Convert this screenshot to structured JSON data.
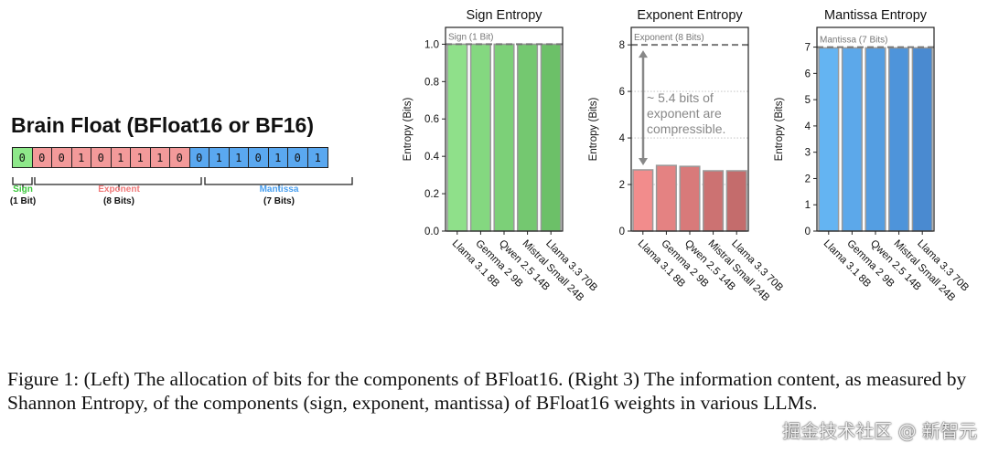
{
  "left_panel": {
    "title": "Brain Float (BFloat16 or BF16)",
    "bits": [
      "0",
      "0",
      "0",
      "1",
      "0",
      "1",
      "1",
      "1",
      "0",
      "0",
      "1",
      "1",
      "0",
      "1",
      "0",
      "1"
    ],
    "sign": {
      "name": "Sign",
      "size": "(1 Bit)",
      "color": "#3cc83c",
      "fill": "#8ee88a"
    },
    "exponent": {
      "name": "Exponent",
      "size": "(8 Bits)",
      "color": "#f07878",
      "fill": "#f39a9a"
    },
    "mantissa": {
      "name": "Mantissa",
      "size": "(7 Bits)",
      "color": "#4aa0f0",
      "fill": "#5aa8f0"
    }
  },
  "chart_data": [
    {
      "type": "bar",
      "title": "Sign Entropy",
      "ylabel": "Entropy (Bits)",
      "ylim": [
        0,
        1.09
      ],
      "yticks": [
        "0.0",
        "0.2",
        "0.4",
        "0.6",
        "0.8",
        "1.0"
      ],
      "ytick_values": [
        0,
        0.2,
        0.4,
        0.6,
        0.8,
        1.0
      ],
      "categories": [
        "Llama 3.1 8B",
        "Gemma 2 9B",
        "Qwen 2.5 14B",
        "Mistral Small 24B",
        "Llama 3.3 70B"
      ],
      "values": [
        1.0,
        1.0,
        1.0,
        1.0,
        1.0
      ],
      "ref_line": 1.0,
      "ref_label": "Sign (1 Bit)",
      "colors": [
        "#8fe08a",
        "#84d880",
        "#7cd078",
        "#74c870",
        "#6cc068"
      ]
    },
    {
      "type": "bar",
      "title": "Exponent Entropy",
      "ylabel": "Entropy (Bits)",
      "ylim": [
        0,
        8.75
      ],
      "yticks": [
        "0",
        "2",
        "4",
        "6",
        "8"
      ],
      "ytick_values": [
        0,
        2,
        4,
        6,
        8
      ],
      "categories": [
        "Llama 3.1 8B",
        "Gemma 2 9B",
        "Qwen 2.5 14B",
        "Mistral Small 24B",
        "Llama 3.3 70B"
      ],
      "values": [
        2.63,
        2.82,
        2.78,
        2.59,
        2.59
      ],
      "ref_line": 8,
      "ref_label": "Exponent (8 Bits)",
      "annotation": [
        "~ 5.4 bits of",
        "exponent are",
        "compressible."
      ],
      "colors": [
        "#f28c8c",
        "#e48282",
        "#d87a7a",
        "#cc7272",
        "#c46c6c"
      ]
    },
    {
      "type": "bar",
      "title": "Mantissa Entropy",
      "ylabel": "Entropy (Bits)",
      "ylim": [
        0,
        7.75
      ],
      "yticks": [
        "0",
        "1",
        "2",
        "3",
        "4",
        "5",
        "6",
        "7"
      ],
      "ytick_values": [
        0,
        1,
        2,
        3,
        4,
        5,
        6,
        7
      ],
      "categories": [
        "Llama 3.1 8B",
        "Gemma 2 9B",
        "Qwen 2.5 14B",
        "Mistral Small 24B",
        "Llama 3.3 70B"
      ],
      "values": [
        6.97,
        6.97,
        6.97,
        6.97,
        6.97
      ],
      "ref_line": 7,
      "ref_label": "Mantissa (7 Bits)",
      "colors": [
        "#64b4f2",
        "#5ca8ea",
        "#549ee2",
        "#4e94da",
        "#4a8ad0"
      ]
    }
  ],
  "caption": "Figure 1: (Left) The allocation of bits for the components of BFloat16. (Right 3) The information content, as measured by Shannon Entropy, of the components (sign, exponent, mantissa) of BFloat16 weights in various LLMs.",
  "watermark": "掘金技术社区 @ 新智元"
}
